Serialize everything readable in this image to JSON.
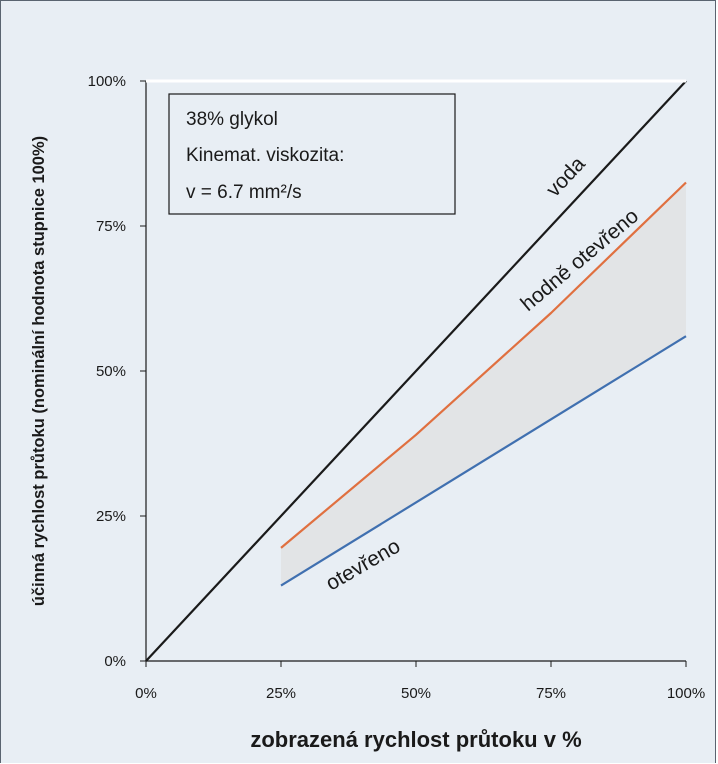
{
  "chart_data": {
    "type": "line",
    "xlabel": "zobrazená rychlost průtoku v %",
    "ylabel": "účinná rychlost průtoku (nominální hodnota stupnice 100%)",
    "xlim": [
      0,
      100
    ],
    "ylim": [
      0,
      100
    ],
    "x_ticks": [
      "0%",
      "25%",
      "50%",
      "75%",
      "100%"
    ],
    "y_ticks": [
      "0%",
      "25%",
      "50%",
      "75%",
      "100%"
    ],
    "grid": false,
    "info_box": [
      "38% glykol",
      "Kinemat. viskozita:",
      "v = 6.7 mm²/s"
    ],
    "series": [
      {
        "name": "voda",
        "color": "#1a1a1a",
        "x": [
          0,
          100
        ],
        "y": [
          0,
          100
        ]
      },
      {
        "name": "hodně otevřeno",
        "color": "#e07040",
        "x": [
          25,
          50,
          75,
          100
        ],
        "y": [
          19.5,
          39,
          60,
          82.5
        ]
      },
      {
        "name": "otevřeno",
        "color": "#4070b0",
        "x": [
          25,
          100
        ],
        "y": [
          13,
          56
        ]
      }
    ],
    "shaded_band": {
      "between": [
        "otevřeno",
        "hodně otevřeno"
      ],
      "x_range": [
        25,
        100
      ],
      "color": "#e2e4e6"
    }
  }
}
